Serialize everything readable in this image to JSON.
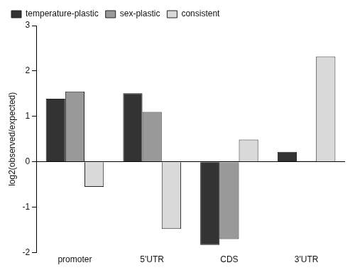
{
  "chart_data": {
    "type": "bar",
    "y_label": "log2(observed/expected)",
    "categories": [
      "promoter",
      "5'UTR",
      "CDS",
      "3'UTR"
    ],
    "series": [
      {
        "name": "temperature-plastic",
        "color": "#333333",
        "values": [
          1.39,
          1.51,
          -1.83,
          0.22
        ]
      },
      {
        "name": "sex-plastic",
        "color": "#999999",
        "values": [
          1.55,
          1.1,
          -1.7,
          0.02
        ]
      },
      {
        "name": "consistent",
        "color": "#d9d9d9",
        "values": [
          -0.55,
          -1.48,
          0.49,
          2.32
        ]
      }
    ],
    "ylim": [
      -2,
      3
    ],
    "yticks": [
      -2,
      -1,
      0,
      1,
      2,
      3
    ],
    "grid": false,
    "legend": "top-left"
  }
}
